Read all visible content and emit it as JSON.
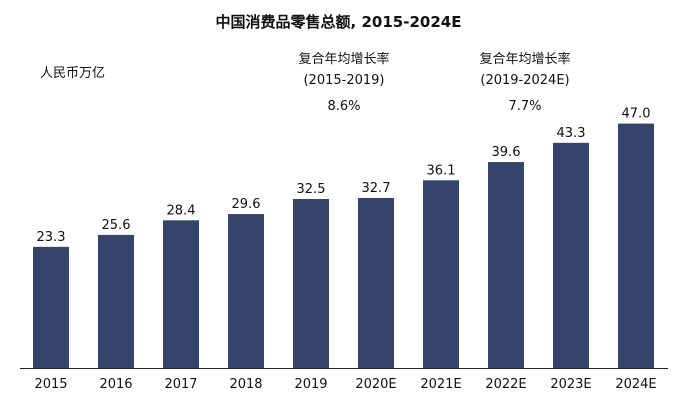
{
  "chart_data": {
    "type": "bar",
    "title": "中国消费品零售总额, 2015-2024E",
    "unit_label": "人民币万亿",
    "categories": [
      "2015",
      "2016",
      "2017",
      "2018",
      "2019",
      "2020E",
      "2021E",
      "2022E",
      "2023E",
      "2024E"
    ],
    "values": [
      23.3,
      25.6,
      28.4,
      29.6,
      32.5,
      32.7,
      36.1,
      39.6,
      43.3,
      47.0
    ],
    "value_labels": [
      "23.3",
      "25.6",
      "28.4",
      "29.6",
      "32.5",
      "32.7",
      "36.1",
      "39.6",
      "43.3",
      "47.0"
    ],
    "bar_color": "#34446a",
    "ylim": [
      0,
      50
    ],
    "grid": false,
    "annotations": [
      {
        "label": "复合年均增长率",
        "period": "(2015-2019)",
        "value": "8.6%"
      },
      {
        "label": "复合年均增长率",
        "period": "(2019-2024E)",
        "value": "7.7%"
      }
    ]
  }
}
